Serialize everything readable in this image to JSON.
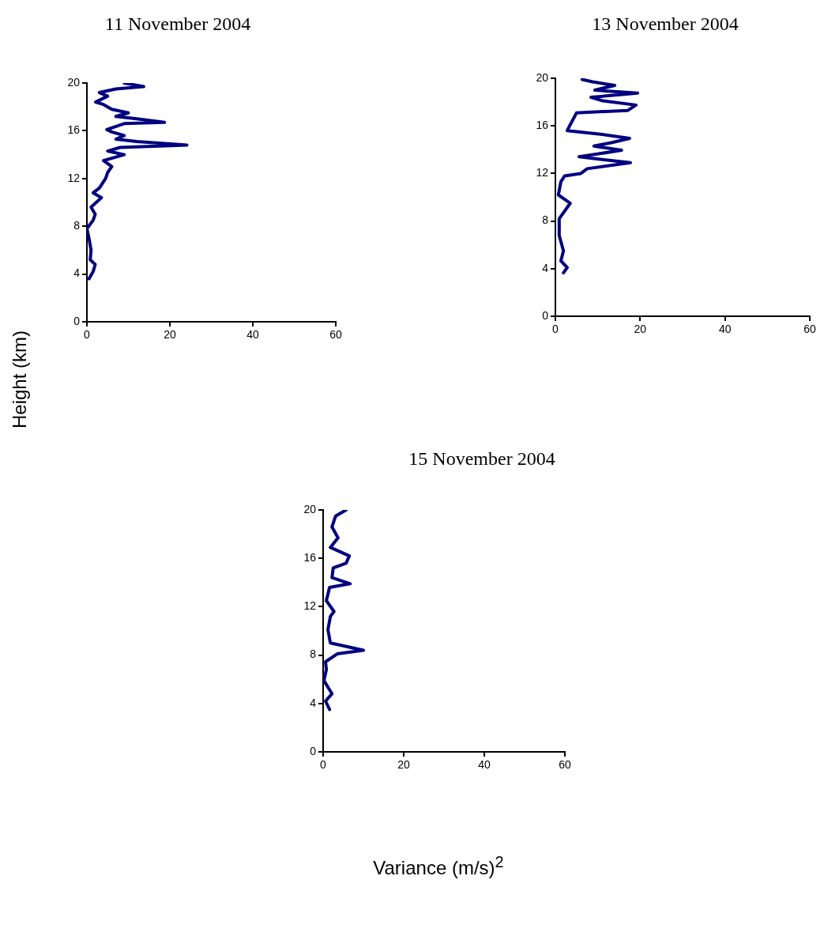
{
  "chart_data": [
    {
      "type": "line",
      "title": "11 November 2004",
      "ylabel": "Height (km)",
      "xlim": [
        0,
        60
      ],
      "xticks": [
        0,
        20,
        40,
        60
      ],
      "ylim": [
        0,
        20
      ],
      "yticks": [
        0,
        4,
        8,
        12,
        16,
        20
      ],
      "grid": false,
      "legend": false,
      "series": [
        {
          "color": "#000080",
          "x": [
            0.5,
            1.5,
            2,
            0.8,
            1,
            0.5,
            0,
            1.5,
            2,
            1,
            3.5,
            1.5,
            3,
            4.5,
            5,
            6,
            4,
            9,
            5,
            8,
            24.1,
            12,
            7,
            9,
            6,
            4.8,
            9,
            18.7,
            12,
            7,
            10,
            6,
            4,
            2.1,
            5,
            3,
            7,
            13.7,
            9
          ],
          "values": [
            3.6,
            4.2,
            4.8,
            5.2,
            6,
            7,
            7.8,
            8.5,
            9,
            9.6,
            10.4,
            10.8,
            11.2,
            12,
            12.5,
            13,
            13.5,
            14,
            14.3,
            14.6,
            14.8,
            15.1,
            15.3,
            15.6,
            15.9,
            16.1,
            16.6,
            16.7,
            17,
            17.2,
            17.5,
            17.8,
            18.2,
            18.4,
            18.9,
            19.2,
            19.5,
            19.7,
            20
          ]
        }
      ]
    },
    {
      "type": "line",
      "title": "13 November 2004",
      "xlim": [
        0,
        60
      ],
      "xticks": [
        0,
        20,
        40,
        60
      ],
      "ylim": [
        0,
        20
      ],
      "yticks": [
        0,
        4,
        8,
        12,
        16,
        20
      ],
      "grid": false,
      "legend": false,
      "series": [
        {
          "color": "#000080",
          "x": [
            1.9,
            2.8,
            1.3,
            1.9,
            0.9,
            0.9,
            3.5,
            0.7,
            1.3,
            2.2,
            6,
            7.5,
            17.7,
            5.6,
            15.6,
            9.1,
            13.4,
            17.5,
            10.6,
            2.8,
            3.5,
            5,
            17.1,
            19,
            11.2,
            8.4,
            19.4,
            9.3,
            14,
            8.8,
            6.3
          ],
          "values": [
            3.65,
            4.1,
            4.65,
            5.5,
            6.8,
            8.2,
            9.5,
            10.2,
            11.3,
            11.8,
            12,
            12.4,
            12.9,
            13.4,
            13.95,
            14.3,
            14.6,
            14.95,
            15.3,
            15.6,
            16.1,
            17.1,
            17.3,
            17.75,
            18.1,
            18.4,
            18.75,
            19,
            19.4,
            19.7,
            19.9
          ]
        }
      ]
    },
    {
      "type": "line",
      "title": "15 November 2004",
      "xlabel": "Variance (m/s)$^{2}$",
      "xlim": [
        0,
        60
      ],
      "xticks": [
        0,
        20,
        40,
        60
      ],
      "ylim": [
        0,
        20
      ],
      "yticks": [
        0,
        4,
        8,
        12,
        16,
        20
      ],
      "grid": false,
      "legend": false,
      "series": [
        {
          "color": "#000080",
          "x": [
            1.6,
            0.6,
            2.2,
            0.2,
            0.8,
            0.6,
            3.5,
            10,
            1.8,
            1.2,
            1.8,
            2.7,
            0.8,
            1.6,
            6.7,
            2.2,
            2.5,
            5.7,
            6.5,
            1.8,
            3.7,
            2.2,
            3.1,
            5.7
          ],
          "values": [
            3.5,
            4.2,
            4.8,
            5.9,
            6.8,
            7.45,
            8.1,
            8.4,
            9,
            10.1,
            11.2,
            11.6,
            12.5,
            13.6,
            13.9,
            14.4,
            15.2,
            15.6,
            16.2,
            16.9,
            17.7,
            18.6,
            19.5,
            20
          ]
        }
      ]
    }
  ]
}
